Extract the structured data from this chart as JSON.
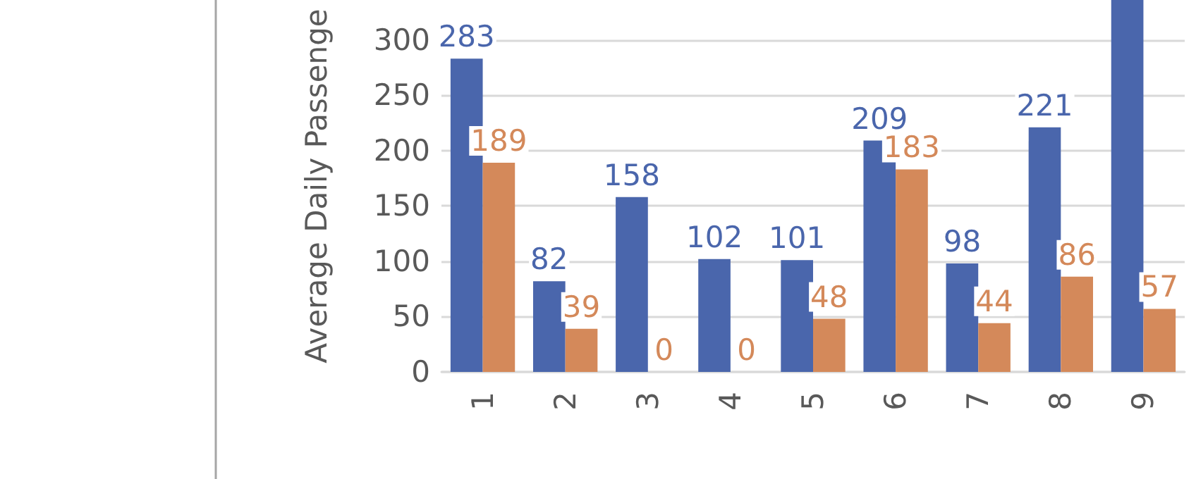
{
  "chart_data": {
    "type": "bar",
    "ylabel": "Average Daily Passenge",
    "categories": [
      "1",
      "2",
      "3",
      "4",
      "5",
      "6",
      "7",
      "8",
      "9"
    ],
    "series": [
      {
        "color": "#4a66ac",
        "values": [
          283,
          82,
          158,
          102,
          101,
          209,
          98,
          221,
          336
        ],
        "value_labels": [
          "283",
          "82",
          "158",
          "102",
          "101",
          "209",
          "98",
          "221",
          null
        ]
      },
      {
        "color": "#d4895a",
        "values": [
          189,
          39,
          0,
          0,
          48,
          183,
          44,
          86,
          57
        ],
        "value_labels": [
          "189",
          "39",
          "0",
          "0",
          "48",
          "183",
          "44",
          "86",
          "57"
        ]
      }
    ],
    "ylim": [
      0,
      336
    ],
    "yticks": [
      0,
      50,
      100,
      150,
      200,
      250,
      300
    ],
    "grid": "y"
  }
}
